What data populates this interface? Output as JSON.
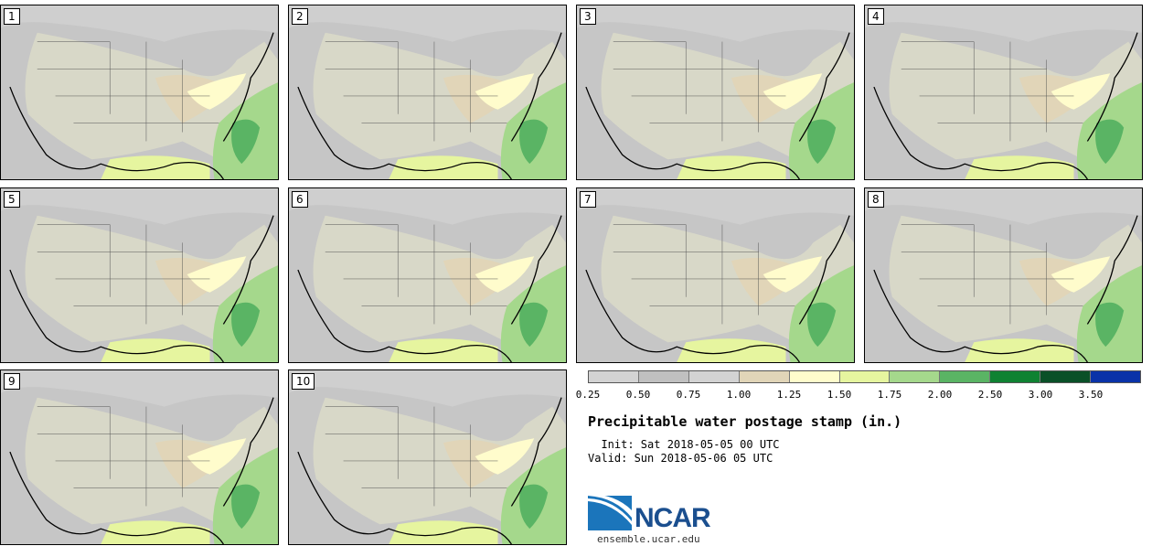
{
  "panels": [
    "1",
    "2",
    "3",
    "4",
    "5",
    "6",
    "7",
    "8",
    "9",
    "10"
  ],
  "colorbar": {
    "colors": [
      "#d3d3d3",
      "#c0c0c0",
      "#d3d3d3",
      "#e1d5b8",
      "#fffccc",
      "#e6f59f",
      "#a5d88c",
      "#5ab464",
      "#0f8232",
      "#0a5028",
      "#0a32a8"
    ],
    "ticks": [
      "0.25",
      "0.50",
      "0.75",
      "1.00",
      "1.25",
      "1.50",
      "1.75",
      "2.00",
      "2.50",
      "3.00",
      "3.50"
    ]
  },
  "title": "Precipitable water postage stamp (in.)",
  "init": "  Init: Sat 2018-05-05 00 UTC",
  "valid": "Valid: Sun 2018-05-06 05 UTC",
  "logo": {
    "name": "NCAR",
    "url": "ensemble.ucar.edu"
  }
}
